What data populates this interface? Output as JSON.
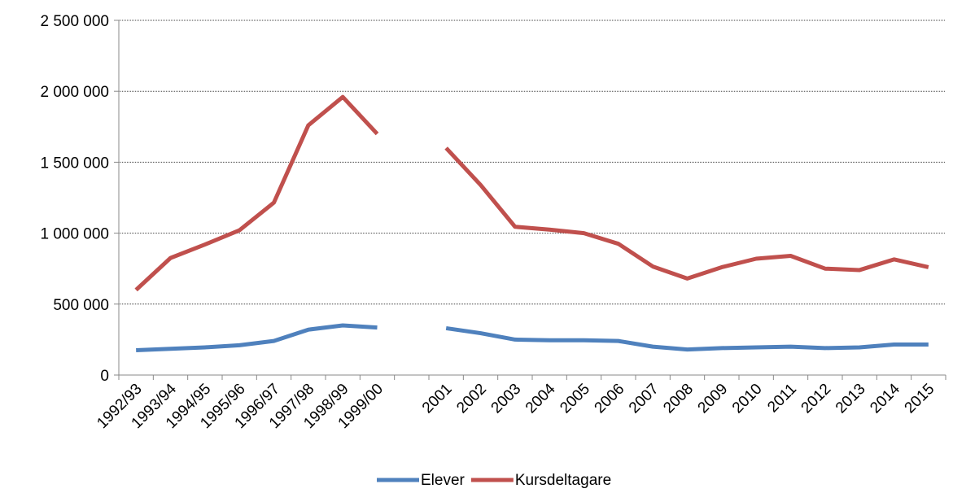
{
  "chart_data": {
    "type": "line",
    "categories": [
      "1992/93",
      "1993/94",
      "1994/95",
      "1995/96",
      "1996/97",
      "1997/98",
      "1998/99",
      "1999/00",
      null,
      "2001",
      "2002",
      "2003",
      "2004",
      "2005",
      "2006",
      "2007",
      "2008",
      "2009",
      "2010",
      "2011",
      "2012",
      "2013",
      "2014",
      "2015"
    ],
    "series": [
      {
        "name": "Elever",
        "color": "#4f81bd",
        "values": [
          175000,
          185000,
          195000,
          210000,
          240000,
          320000,
          350000,
          335000,
          null,
          330000,
          295000,
          250000,
          245000,
          245000,
          240000,
          200000,
          180000,
          190000,
          195000,
          200000,
          190000,
          195000,
          215000,
          215000
        ]
      },
      {
        "name": "Kursdeltagare",
        "color": "#c0504d",
        "values": [
          600000,
          825000,
          920000,
          1020000,
          1215000,
          1760000,
          1960000,
          1700000,
          null,
          1600000,
          1340000,
          1045000,
          1025000,
          1000000,
          925000,
          765000,
          680000,
          760000,
          820000,
          840000,
          750000,
          740000,
          815000,
          760000
        ]
      }
    ],
    "ylim": [
      0,
      2500000
    ],
    "yticks": [
      0,
      {
        "value": 500000,
        "label": "500 000"
      },
      {
        "value": 1000000,
        "label": "1 000 000"
      },
      {
        "value": 1500000,
        "label": "1 500 000"
      },
      {
        "value": 2000000,
        "label": "2 000 000"
      },
      {
        "value": 2500000,
        "label": "2 500 000"
      }
    ],
    "grid": true,
    "legend": "bottom"
  }
}
